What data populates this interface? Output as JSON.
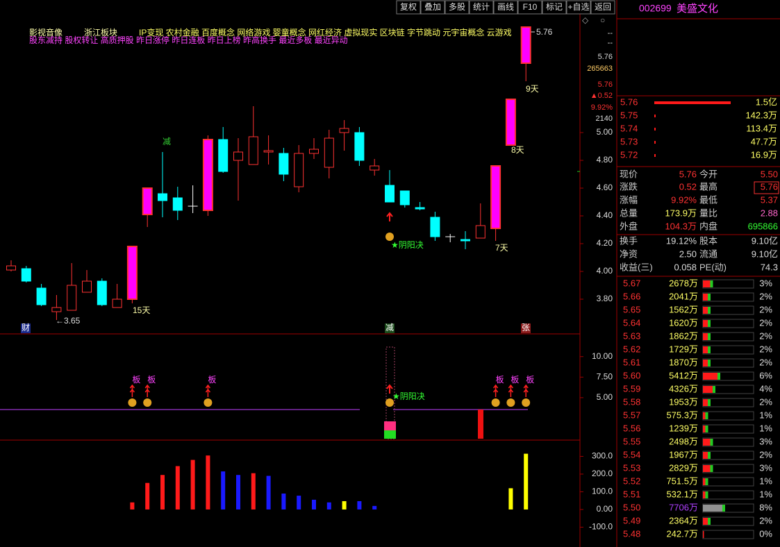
{
  "toolbar": [
    "复权",
    "叠加",
    "多股",
    "统计",
    "画线",
    "F10",
    "标记",
    "+自选",
    "返回"
  ],
  "stock": {
    "code": "002699",
    "name": "美盛文化"
  },
  "tags": {
    "industry": "影视音像",
    "region": "浙江板块",
    "concepts": "IP变现 农村金融 百度概念 网络游戏 婴童概念 网红经济 虚拟现实 区块链 字节跳动 元宇宙概念 云游戏",
    "signals": "股东减持 股权转让 高质押股 昨日涨停 昨日连板 昨日上榜 昨高换手 最近多板 最近异动"
  },
  "main_chart": {
    "ylim": [
      3.555,
      5.855
    ],
    "yticks": [
      {
        "value": 3.8,
        "label": "3.80"
      },
      {
        "value": 4.0,
        "label": "4.00"
      },
      {
        "value": 4.2,
        "label": "4.20"
      },
      {
        "value": 4.4,
        "label": "4.40"
      },
      {
        "value": 4.6,
        "label": "4.60"
      },
      {
        "value": 4.8,
        "label": "4.80"
      },
      {
        "value": 5.0,
        "label": "5.00"
      }
    ],
    "side_labels": [
      "--",
      "--",
      "5.76",
      "265663",
      "5.76",
      "▲0.52",
      "9.92%",
      "2140"
    ],
    "colors": {
      "up": "#ff3232",
      "down": "#00ffff",
      "limit": "#ff00ff",
      "flat": "#ffffff"
    },
    "candles": [
      {
        "open": 4.01,
        "high": 4.08,
        "low": 4.0,
        "close": 4.04
      },
      {
        "open": 4.02,
        "high": 4.04,
        "low": 3.92,
        "close": 3.93
      },
      {
        "open": 3.88,
        "high": 3.91,
        "low": 3.75,
        "close": 3.76
      },
      {
        "open": 3.71,
        "high": 3.83,
        "low": 3.65,
        "close": 3.74
      },
      {
        "open": 3.72,
        "high": 4.06,
        "low": 3.72,
        "close": 3.9
      },
      {
        "open": 3.85,
        "high": 4.01,
        "low": 3.85,
        "close": 3.93
      },
      {
        "open": 3.93,
        "high": 3.95,
        "low": 3.75,
        "close": 3.76
      },
      {
        "open": 3.74,
        "high": 3.91,
        "low": 3.74,
        "close": 3.8
      },
      {
        "open": 3.8,
        "high": 4.18,
        "low": 3.77,
        "close": 4.18,
        "limit": true
      },
      {
        "open": 4.41,
        "high": 4.6,
        "low": 4.32,
        "close": 4.6,
        "limit": true
      },
      {
        "open": 4.56,
        "high": 4.86,
        "low": 4.39,
        "close": 4.51
      },
      {
        "open": 4.53,
        "high": 4.61,
        "low": 4.37,
        "close": 4.44
      },
      {
        "open": 4.47,
        "high": 4.62,
        "low": 4.42,
        "close": 4.47
      },
      {
        "open": 4.44,
        "high": 4.98,
        "low": 4.4,
        "close": 4.95,
        "limit": true
      },
      {
        "open": 4.95,
        "high": 5.04,
        "low": 4.71,
        "close": 4.72
      },
      {
        "open": 4.8,
        "high": 4.96,
        "low": 4.51,
        "close": 4.86
      },
      {
        "open": 4.77,
        "high": 5.19,
        "low": 4.77,
        "close": 4.97
      },
      {
        "open": 4.86,
        "high": 4.98,
        "low": 4.77,
        "close": 4.87
      },
      {
        "open": 4.85,
        "high": 4.89,
        "low": 4.65,
        "close": 4.7
      },
      {
        "open": 4.61,
        "high": 4.91,
        "low": 4.57,
        "close": 4.85
      },
      {
        "open": 4.85,
        "high": 4.96,
        "low": 4.81,
        "close": 4.88
      },
      {
        "open": 4.75,
        "high": 5.02,
        "low": 4.67,
        "close": 4.96
      },
      {
        "open": 5.0,
        "high": 5.09,
        "low": 4.87,
        "close": 5.03
      },
      {
        "open": 5.0,
        "high": 5.04,
        "low": 4.76,
        "close": 4.8
      },
      {
        "open": 4.73,
        "high": 4.81,
        "low": 4.69,
        "close": 4.76
      },
      {
        "open": 4.62,
        "high": 4.73,
        "low": 4.5,
        "close": 4.5
      },
      {
        "open": 4.58,
        "high": 4.58,
        "low": 4.46,
        "close": 4.48
      },
      {
        "open": 4.46,
        "high": 4.5,
        "low": 4.44,
        "close": 4.45
      },
      {
        "open": 4.39,
        "high": 4.43,
        "low": 4.22,
        "close": 4.25
      },
      {
        "open": 4.25,
        "high": 4.27,
        "low": 4.21,
        "close": 4.25
      },
      {
        "open": 4.23,
        "high": 4.29,
        "low": 4.16,
        "close": 4.22
      },
      {
        "open": 4.24,
        "high": 4.49,
        "low": 4.24,
        "close": 4.33
      },
      {
        "open": 4.31,
        "high": 4.76,
        "low": 4.22,
        "close": 4.76,
        "limit": true
      },
      {
        "open": 4.91,
        "high": 5.24,
        "low": 4.91,
        "close": 5.24,
        "limit": true
      },
      {
        "open": 5.5,
        "high": 5.76,
        "low": 5.37,
        "close": 5.76,
        "limit": true
      }
    ],
    "annotations": {
      "low": "←3.65",
      "high": "5.76",
      "streaks": [
        "15天",
        "7天",
        "8天",
        "9天"
      ],
      "reduce": "减",
      "yinyang": "★阴阳决"
    },
    "markers": [
      "财",
      "减",
      "张"
    ]
  },
  "signal_panel": {
    "ylim": [
      0,
      12.6
    ],
    "yticks": [
      {
        "value": 5,
        "label": "5.00"
      },
      {
        "value": 7.5,
        "label": "7.50"
      },
      {
        "value": 10,
        "label": "10.00"
      }
    ],
    "labels": [
      "板",
      "板",
      "板",
      "板",
      "板",
      "板"
    ],
    "yinyang": "★阴阳决"
  },
  "macd_panel": {
    "ylim": [
      -212,
      392
    ],
    "yticks": [
      {
        "value": -100,
        "label": "-100.0"
      },
      {
        "value": 0,
        "label": "0.00"
      },
      {
        "value": 100,
        "label": "100.0"
      },
      {
        "value": 200,
        "label": "200.0"
      },
      {
        "value": 300,
        "label": "300.0"
      }
    ],
    "values": [
      null,
      null,
      null,
      null,
      null,
      null,
      null,
      null,
      40,
      150,
      195,
      245,
      280,
      305,
      215,
      195,
      205,
      190,
      90,
      78,
      55,
      40,
      47,
      47,
      20,
      null,
      null,
      null,
      null,
      null,
      null,
      null,
      null,
      120,
      315
    ],
    "colors": [
      null,
      null,
      null,
      null,
      null,
      null,
      null,
      null,
      "#ff1a1a",
      "#ff1a1a",
      "#ff1a1a",
      "#ff1a1a",
      "#ff1a1a",
      "#ff1a1a",
      "#1a1aff",
      "#1a1aff",
      "#ff1a1a",
      "#1a1aff",
      "#1a1aff",
      "#1a1aff",
      "#1a1aff",
      "#1a1aff",
      "#ffff00",
      "#1a1aff",
      "#1a1aff",
      null,
      null,
      null,
      null,
      null,
      null,
      null,
      null,
      "#ffff00",
      "#ffff00"
    ]
  },
  "order_book": [
    {
      "price": "5.76",
      "volume": "1.5亿"
    },
    {
      "price": "5.75",
      "volume": "142.3万"
    },
    {
      "price": "5.74",
      "volume": "113.4万"
    },
    {
      "price": "5.73",
      "volume": "47.7万"
    },
    {
      "price": "5.72",
      "volume": "16.9万"
    }
  ],
  "quote": [
    [
      "现价",
      "5.76",
      "今开",
      "5.50"
    ],
    [
      "涨跌",
      "0.52",
      "最高",
      "5.76"
    ],
    [
      "涨幅",
      "9.92%",
      "最低",
      "5.37"
    ],
    [
      "总量",
      "173.9万",
      "量比",
      "2.88"
    ],
    [
      "外盘",
      "104.3万",
      "内盘",
      "695866"
    ],
    [
      "换手",
      "19.12%",
      "股本",
      "9.10亿"
    ],
    [
      "净资",
      "2.50",
      "流通",
      "9.10亿"
    ],
    [
      "收益(三)",
      "0.058",
      "PE(动)",
      "74.3"
    ]
  ],
  "price_volume": [
    {
      "price": "5.67",
      "volume": "2678万",
      "share": "3%"
    },
    {
      "price": "5.66",
      "volume": "2041万",
      "share": "2%"
    },
    {
      "price": "5.65",
      "volume": "1562万",
      "share": "2%"
    },
    {
      "price": "5.64",
      "volume": "1620万",
      "share": "2%"
    },
    {
      "price": "5.63",
      "volume": "1862万",
      "share": "2%"
    },
    {
      "price": "5.62",
      "volume": "1729万",
      "share": "2%"
    },
    {
      "price": "5.61",
      "volume": "1870万",
      "share": "2%"
    },
    {
      "price": "5.60",
      "volume": "5412万",
      "share": "6%"
    },
    {
      "price": "5.59",
      "volume": "4326万",
      "share": "4%"
    },
    {
      "price": "5.58",
      "volume": "1953万",
      "share": "2%"
    },
    {
      "price": "5.57",
      "volume": "575.3万",
      "share": "1%"
    },
    {
      "price": "5.56",
      "volume": "1239万",
      "share": "1%"
    },
    {
      "price": "5.55",
      "volume": "2498万",
      "share": "3%"
    },
    {
      "price": "5.54",
      "volume": "1967万",
      "share": "2%"
    },
    {
      "price": "5.53",
      "volume": "2829万",
      "share": "3%"
    },
    {
      "price": "5.52",
      "volume": "751.5万",
      "share": "1%"
    },
    {
      "price": "5.51",
      "volume": "532.1万",
      "share": "1%"
    },
    {
      "price": "5.50",
      "volume": "7706万",
      "share": "8%",
      "color": "#b040ff"
    },
    {
      "price": "5.49",
      "volume": "2364万",
      "share": "2%"
    },
    {
      "price": "5.48",
      "volume": "242.7万",
      "share": "0%"
    }
  ]
}
